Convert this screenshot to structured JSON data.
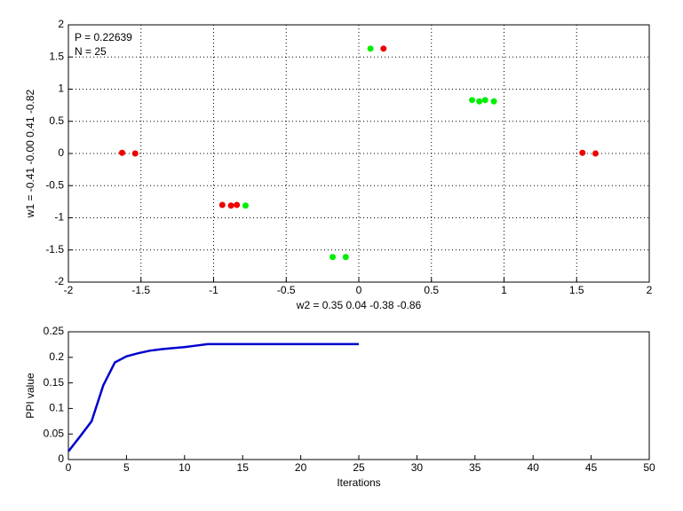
{
  "chart_data": [
    {
      "type": "scatter",
      "xlabel": "w2 = 0.35  0.04  -0.38  -0.86",
      "ylabel": "w1 = -0.41  -0.00  0.41  -0.82",
      "annotations": [
        "P = 0.22639",
        "N = 25"
      ],
      "xlim": [
        -2,
        2
      ],
      "xticks": [
        -2,
        -1.5,
        -1,
        -0.5,
        0,
        0.5,
        1,
        1.5,
        2
      ],
      "ylim": [
        -2,
        2
      ],
      "yticks": [
        -2,
        -1.5,
        -1,
        -0.5,
        0,
        0.5,
        1,
        1.5,
        2
      ],
      "grid": true,
      "series": [
        {
          "color": "#00ee00",
          "x": [
            0.08,
            0.78,
            0.83,
            0.87,
            0.93,
            -0.78,
            -0.18,
            -0.09
          ],
          "values": [
            1.63,
            0.83,
            0.81,
            0.83,
            0.81,
            -0.81,
            -1.61,
            -1.61
          ]
        },
        {
          "color": "#ee0000",
          "x": [
            -1.63,
            -1.54,
            -0.94,
            -0.88,
            -0.84,
            0.17,
            1.54,
            1.63
          ],
          "values": [
            0.01,
            0,
            -0.8,
            -0.81,
            -0.8,
            1.63,
            0.01,
            0
          ]
        }
      ]
    },
    {
      "type": "line",
      "xlabel": "Iterations",
      "ylabel": "PPI value",
      "xlim": [
        0,
        50
      ],
      "xticks": [
        0,
        5,
        10,
        15,
        20,
        25,
        30,
        35,
        40,
        45,
        50
      ],
      "ylim": [
        0,
        0.25
      ],
      "yticks": [
        0,
        0.05,
        0.1,
        0.15,
        0.2,
        0.25
      ],
      "grid": false,
      "color": "#0000cc",
      "x": [
        0,
        1,
        2,
        3,
        4,
        5,
        6,
        7,
        8,
        9,
        10,
        11,
        12,
        13,
        14,
        15,
        16,
        17,
        18,
        19,
        20,
        21,
        22,
        23,
        24,
        25
      ],
      "values": [
        0.016,
        0.045,
        0.075,
        0.145,
        0.19,
        0.202,
        0.208,
        0.213,
        0.216,
        0.218,
        0.22,
        0.223,
        0.226,
        0.226,
        0.226,
        0.226,
        0.226,
        0.226,
        0.226,
        0.226,
        0.226,
        0.226,
        0.226,
        0.226,
        0.226,
        0.226
      ]
    }
  ]
}
